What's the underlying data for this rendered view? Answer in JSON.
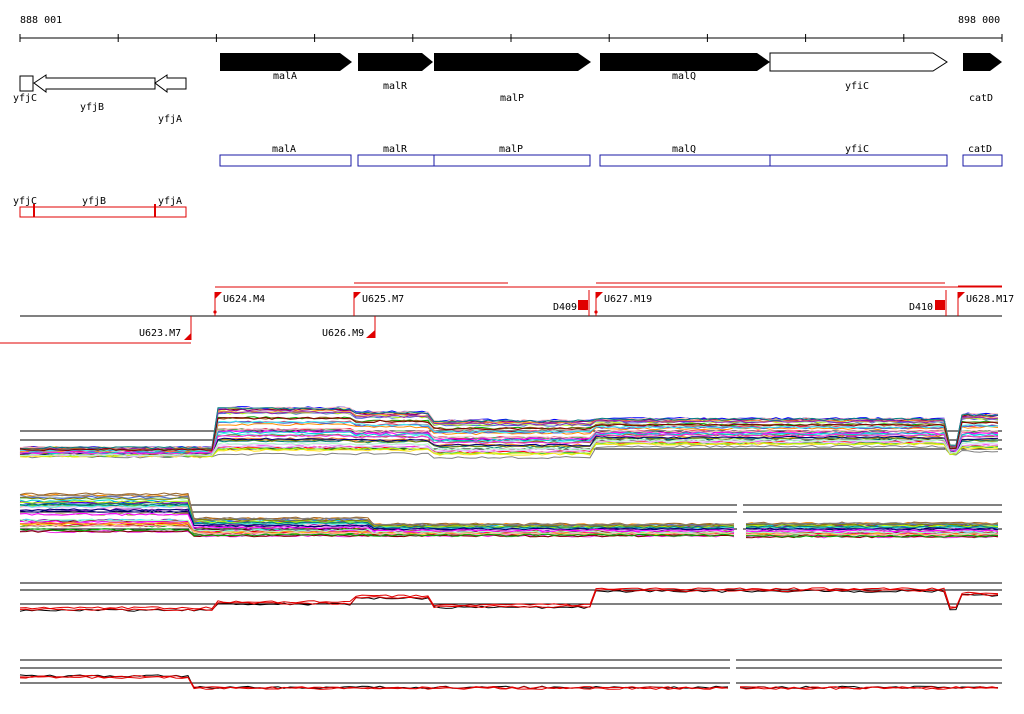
{
  "ruler": {
    "start_label": "888 001",
    "end_label": "898 000"
  },
  "genes_forward": [
    {
      "name": "malA",
      "style": "filled"
    },
    {
      "name": "malR",
      "style": "filled"
    },
    {
      "name": "malP",
      "style": "filled"
    },
    {
      "name": "malQ",
      "style": "filled"
    },
    {
      "name": "yfiC",
      "style": "open"
    },
    {
      "name": "catD",
      "style": "filled"
    }
  ],
  "genes_reverse": [
    {
      "name": "yfjC"
    },
    {
      "name": "yfjB"
    },
    {
      "name": "yfjA"
    }
  ],
  "cds_forward": [
    "malA",
    "malR",
    "malP",
    "malQ",
    "yfiC",
    "catD"
  ],
  "cds_reverse": [
    "yfjC",
    "yfjB",
    "yfjA"
  ],
  "transcription_units_forward": [
    "U624.M4",
    "U625.M7",
    "U627.M19",
    "U628.M17"
  ],
  "transcription_units_reverse": [
    "U623.M7",
    "U626.M9"
  ],
  "terminators": [
    "D409",
    "D410"
  ],
  "colors": {
    "gene": "#000000",
    "cds_forward": "#1a1aa6",
    "cds_reverse": "#e00000",
    "unit": "#e00000",
    "axis": "#000000"
  },
  "expression_panels": [
    {
      "id": "forward-all-samples",
      "series_count": 40
    },
    {
      "id": "reverse-all-samples",
      "series_count": 40
    },
    {
      "id": "forward-replicates",
      "series_count": 3
    },
    {
      "id": "reverse-replicates",
      "series_count": 3
    }
  ]
}
